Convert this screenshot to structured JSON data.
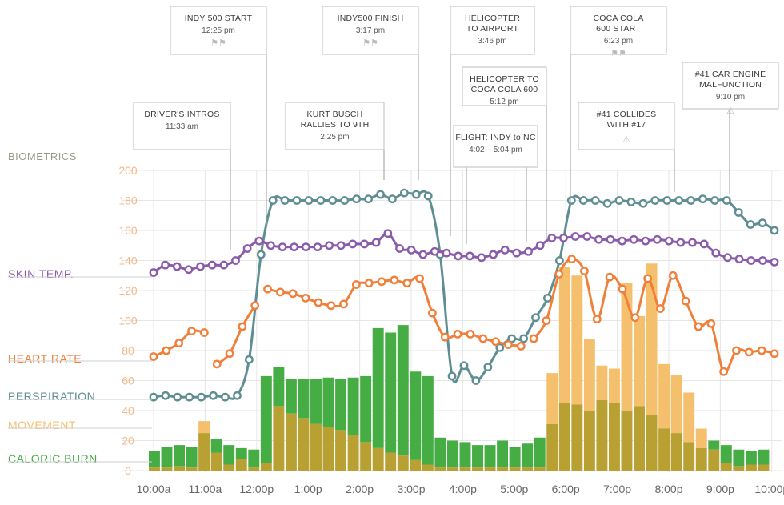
{
  "chart_data": {
    "type": "line",
    "section_label": "BIOMETRICS",
    "ylim": [
      0,
      200
    ],
    "y_ticks": [
      "200",
      "180",
      "160",
      "140",
      "120",
      "100",
      "80",
      "60",
      "40",
      "20",
      "0"
    ],
    "x_ticks": [
      "10:00a",
      "11:00a",
      "12:00p",
      "1:00p",
      "2:00p",
      "3:00p",
      "4:00p",
      "5:00p",
      "6:00p",
      "7:00p",
      "8:00p",
      "9:00p",
      "10:00p"
    ],
    "time_range": [
      "10:00a",
      "10:00p"
    ],
    "colors": {
      "skin_temp": "#8b5bab",
      "heart_rate": "#f07f3a",
      "perspiration": "#5e8d92",
      "movement": "#f5c06d",
      "caloric_burn": "#46ad45",
      "overlap": "#b8a032",
      "grid": "#e6e6e6"
    },
    "series": [
      {
        "name": "SKIN TEMP.",
        "key": "skin_temp",
        "kind": "line",
        "values": [
          132,
          137,
          136,
          134,
          136,
          137,
          137,
          140,
          148,
          153,
          150,
          149,
          149,
          149,
          149,
          150,
          150,
          151,
          151,
          152,
          158,
          148,
          147,
          144,
          146,
          145,
          143,
          143,
          142,
          144,
          147,
          145,
          146,
          150,
          155,
          155,
          156,
          156,
          154,
          154,
          153,
          154,
          153,
          154,
          153,
          152,
          152,
          151,
          145,
          142,
          141,
          140,
          140,
          139
        ]
      },
      {
        "name": "HEART RATE",
        "key": "heart_rate",
        "kind": "line",
        "gaps": [
          [
            4,
            5
          ],
          [
            8,
            9
          ],
          [
            29,
            30
          ]
        ],
        "values": [
          76,
          80,
          85,
          93,
          92,
          71,
          78,
          96,
          110,
          121,
          119,
          118,
          115,
          112,
          110,
          111,
          124,
          125,
          126,
          127,
          125,
          128,
          105,
          89,
          91,
          91,
          88,
          86,
          84,
          83,
          88,
          100,
          131,
          141,
          133,
          101,
          129,
          121,
          102,
          128,
          108,
          130,
          113,
          96,
          98,
          66,
          80,
          79,
          80,
          78
        ]
      },
      {
        "name": "PERSPIRATION",
        "key": "perspiration",
        "kind": "line",
        "values": [
          49,
          50,
          49,
          49,
          49,
          50,
          49,
          50,
          74,
          144,
          180,
          180,
          180,
          180,
          180,
          180,
          180,
          181,
          181,
          184,
          181,
          185,
          184,
          183,
          144,
          63,
          70,
          60,
          69,
          82,
          88,
          88,
          102,
          115,
          140,
          180,
          180,
          180,
          178,
          180,
          179,
          178,
          180,
          180,
          180,
          180,
          181,
          180,
          180,
          172,
          164,
          165,
          160
        ]
      },
      {
        "name": "MOVEMENT",
        "key": "movement",
        "kind": "bar",
        "values": [
          2,
          2,
          3,
          2,
          33,
          12,
          4,
          8,
          2,
          5,
          43,
          38,
          35,
          31,
          29,
          27,
          24,
          19,
          15,
          12,
          10,
          7,
          4,
          2,
          2,
          2,
          2,
          2,
          2,
          2,
          2,
          2,
          65,
          136,
          130,
          88,
          70,
          68,
          125,
          103,
          138,
          71,
          64,
          52,
          28,
          14,
          5,
          3,
          4,
          4
        ]
      },
      {
        "name": "CALORIC BURN",
        "key": "caloric_burn",
        "kind": "bar",
        "values": [
          13,
          16,
          17,
          16,
          25,
          21,
          17,
          15,
          14,
          63,
          69,
          61,
          61,
          61,
          62,
          61,
          62,
          63,
          95,
          92,
          97,
          66,
          63,
          22,
          20,
          19,
          17,
          17,
          20,
          16,
          18,
          22,
          31,
          45,
          44,
          40,
          47,
          45,
          40,
          43,
          37,
          28,
          25,
          19,
          15,
          20,
          17,
          14,
          13,
          14
        ]
      }
    ],
    "events": [
      {
        "title": "DRIVER'S INTROS",
        "time": "11:33 am",
        "icon": ""
      },
      {
        "title": "INDY 500 START",
        "time": "12:25 pm",
        "icon": "checkered-flag-icon"
      },
      {
        "title": "KURT BUSCH RALLIES TO 9TH",
        "time": "2:25 pm",
        "icon": ""
      },
      {
        "title": "INDY500  FINISH",
        "time": "3:17 pm",
        "icon": "checkered-flag-icon"
      },
      {
        "title": "HELICOPTER TO AIRPORT",
        "time": "3:46 pm",
        "icon": ""
      },
      {
        "title": "FLIGHT: INDY to NC",
        "time": "4:02 – 5:04 pm",
        "icon": ""
      },
      {
        "title": "HELICOPTER TO COCA COLA 600",
        "time": "5:12 pm",
        "icon": ""
      },
      {
        "title": "COCA COLA 600 START",
        "time": "6:23 pm",
        "icon": "checkered-flag-icon"
      },
      {
        "title": "#41 COLLIDES WITH #17",
        "time": "",
        "icon": "warning-icon"
      },
      {
        "title": "#41 CAR ENGINE MALFUNCTION",
        "time": "9:10 pm",
        "icon": "warning-icon"
      }
    ]
  }
}
